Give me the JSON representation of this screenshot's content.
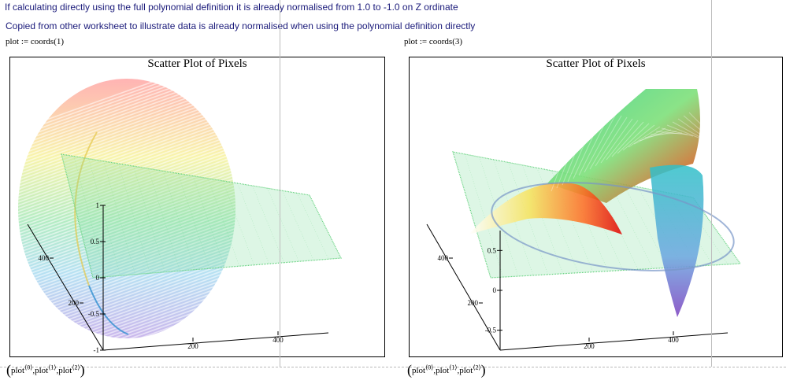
{
  "notes": {
    "line1": "If calculating directly using the full polynomial definition it is already normalised from 1.0 to -1.0 on Z ordinate",
    "line2": "Copied from other worksheet to illustrate data is already normalised when using the polynomial definition directly"
  },
  "expressions": {
    "left": "plot := coords(1)",
    "right": "plot := coords(3)"
  },
  "footer": {
    "open": "(",
    "close": ")",
    "name": "plot",
    "sep": ",",
    "sup0": "⟨0⟩",
    "sup1": "⟨1⟩",
    "sup2": "⟨2⟩"
  },
  "colors": {
    "note_text": "#1a1a7a",
    "plane": "#5fd07a",
    "red": "#ff2200",
    "violet": "#7a3fbf"
  },
  "chart_data": [
    {
      "type": "scatter",
      "title": "Scatter Plot of Pixels",
      "dimension": "3d",
      "surface": "sphere-like disk (coords 1)",
      "z_ticks": [
        "1",
        "0.5",
        "0",
        "-0.5",
        "-1"
      ],
      "z_values": [
        1,
        0.5,
        0,
        -0.5,
        -1
      ],
      "zlim": [
        -1,
        1
      ],
      "x_ticks": [
        "200",
        "400"
      ],
      "x_values": [
        200,
        400
      ],
      "y_ticks": [
        "200",
        "400"
      ],
      "y_values": [
        200,
        400
      ],
      "colormap": "rainbow"
    },
    {
      "type": "scatter",
      "title": "Scatter Plot of Pixels",
      "dimension": "3d",
      "surface": "saddle (coords 3)",
      "z_ticks": [
        "0.5",
        "0",
        "-0.5"
      ],
      "z_values": [
        0.5,
        0,
        -0.5
      ],
      "zlim": [
        -0.75,
        0.75
      ],
      "x_ticks": [
        "200",
        "400"
      ],
      "x_values": [
        200,
        400
      ],
      "y_ticks": [
        "200",
        "400"
      ],
      "y_values": [
        200,
        400
      ],
      "colormap": "rainbow"
    }
  ]
}
